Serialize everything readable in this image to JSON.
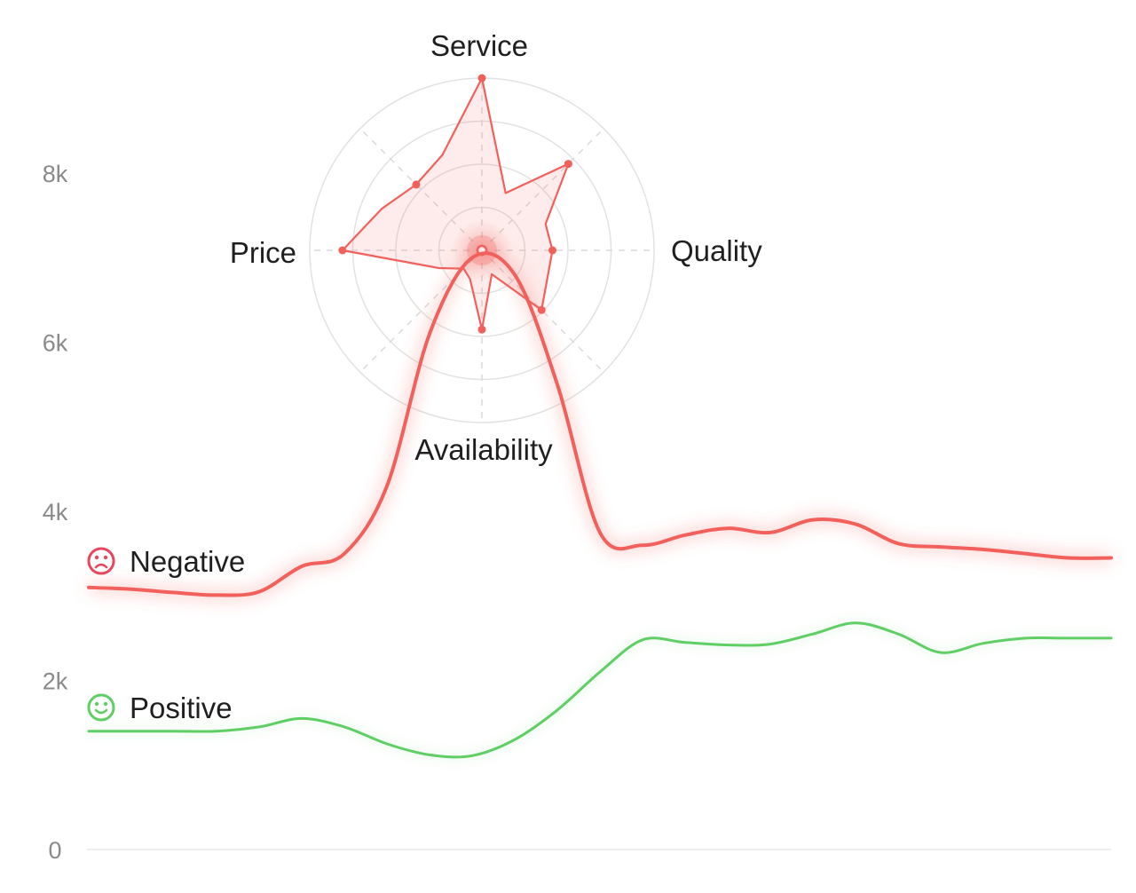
{
  "chart_data": [
    {
      "type": "line",
      "ylim": [
        0,
        9000
      ],
      "yticks": [
        0,
        2000,
        4000,
        6000,
        8000
      ],
      "ytick_labels": [
        "0",
        "2k",
        "4k",
        "6k",
        "8k"
      ],
      "grid": false,
      "x": [
        0,
        1,
        2,
        3,
        4,
        5,
        6,
        7,
        8,
        9,
        10,
        11,
        12,
        13,
        14,
        15,
        16,
        17,
        18,
        19,
        20,
        21,
        22,
        23,
        24
      ],
      "series": [
        {
          "name": "Negative",
          "icon": "sad-face-icon",
          "color": "#f2605c",
          "values": [
            3100,
            3080,
            3040,
            3010,
            3050,
            3350,
            3500,
            4300,
            6100,
            7000,
            6800,
            5500,
            3750,
            3600,
            3720,
            3800,
            3750,
            3900,
            3850,
            3620,
            3580,
            3550,
            3500,
            3450,
            3450
          ]
        },
        {
          "name": "Positive",
          "icon": "smile-face-icon",
          "color": "#5fcf65",
          "values": [
            1400,
            1400,
            1400,
            1400,
            1450,
            1550,
            1450,
            1250,
            1120,
            1110,
            1300,
            1650,
            2100,
            2480,
            2450,
            2420,
            2430,
            2550,
            2680,
            2550,
            2330,
            2440,
            2500,
            2500,
            2500
          ]
        }
      ]
    },
    {
      "type": "radar",
      "axes": [
        "Service",
        "Quality",
        "Availability",
        "Price"
      ],
      "rmax": 100,
      "rings": 4,
      "color": "#f2605c",
      "points": [
        {
          "angle_deg": 0,
          "value": 100
        },
        {
          "angle_deg": 22.5,
          "value": 36
        },
        {
          "angle_deg": 45,
          "value": 71
        },
        {
          "angle_deg": 67.5,
          "value": 40
        },
        {
          "angle_deg": 90,
          "value": 41
        },
        {
          "angle_deg": 135,
          "value": 49
        },
        {
          "angle_deg": 157.5,
          "value": 15
        },
        {
          "angle_deg": 180,
          "value": 46
        },
        {
          "angle_deg": 202.5,
          "value": 18
        },
        {
          "angle_deg": 225,
          "value": 15
        },
        {
          "angle_deg": 247.5,
          "value": 27
        },
        {
          "angle_deg": 270,
          "value": 81
        },
        {
          "angle_deg": 292.5,
          "value": 63
        },
        {
          "angle_deg": 315,
          "value": 54
        },
        {
          "angle_deg": 337.5,
          "value": 60
        }
      ],
      "markers_deg": [
        0,
        45,
        90,
        135,
        180,
        270,
        315
      ]
    }
  ]
}
